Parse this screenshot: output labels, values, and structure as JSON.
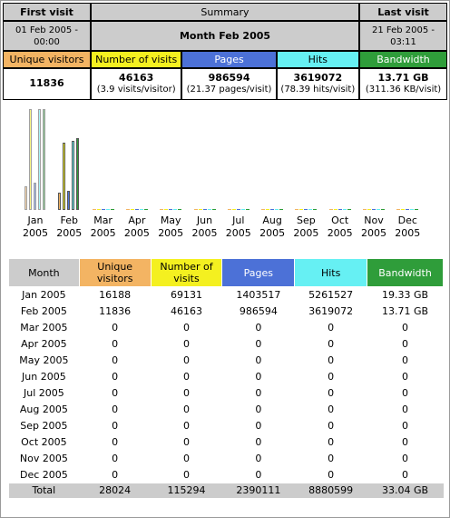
{
  "summary": {
    "first_visit_label": "First visit",
    "summary_label": "Summary",
    "last_visit_label": "Last visit",
    "first_visit_date": "01 Feb 2005 - 00:00",
    "period": "Month Feb 2005",
    "last_visit_date": "21 Feb 2005 - 03:11",
    "labels": {
      "visitors": "Unique visitors",
      "visits": "Number of visits",
      "pages": "Pages",
      "hits": "Hits",
      "bandwidth": "Bandwidth"
    },
    "values": {
      "visitors": "11836",
      "visits": "46163",
      "visits_sub": "(3.9 visits/visitor)",
      "pages": "986594",
      "pages_sub": "(21.37 pages/visit)",
      "hits": "3619072",
      "hits_sub": "(78.39 hits/visit)",
      "bandwidth": "13.71 GB",
      "bandwidth_sub": "(311.36 KB/visit)"
    }
  },
  "colors": {
    "visitors": "#f3b463",
    "visits": "#f4f020",
    "pages": "#4c71d7",
    "hits": "#66f0f3",
    "bandwidth": "#2f9d3a"
  },
  "chart_data": {
    "type": "bar",
    "categories": [
      "Jan 2005",
      "Feb 2005",
      "Mar 2005",
      "Apr 2005",
      "May 2005",
      "Jun 2005",
      "Jul 2005",
      "Aug 2005",
      "Sep 2005",
      "Oct 2005",
      "Nov 2005",
      "Dec 2005"
    ],
    "series": [
      {
        "name": "Unique visitors",
        "values": [
          16188,
          11836,
          0,
          0,
          0,
          0,
          0,
          0,
          0,
          0,
          0,
          0
        ]
      },
      {
        "name": "Number of visits",
        "values": [
          69131,
          46163,
          0,
          0,
          0,
          0,
          0,
          0,
          0,
          0,
          0,
          0
        ]
      },
      {
        "name": "Pages",
        "values": [
          1403517,
          986594,
          0,
          0,
          0,
          0,
          0,
          0,
          0,
          0,
          0,
          0
        ]
      },
      {
        "name": "Hits",
        "values": [
          5261527,
          3619072,
          0,
          0,
          0,
          0,
          0,
          0,
          0,
          0,
          0,
          0
        ]
      },
      {
        "name": "Bandwidth",
        "values": [
          19.33,
          13.71,
          0,
          0,
          0,
          0,
          0,
          0,
          0,
          0,
          0,
          0
        ]
      }
    ],
    "month_labels": [
      [
        "Jan",
        "2005"
      ],
      [
        "Feb",
        "2005"
      ],
      [
        "Mar",
        "2005"
      ],
      [
        "Apr",
        "2005"
      ],
      [
        "May",
        "2005"
      ],
      [
        "Jun",
        "2005"
      ],
      [
        "Jul",
        "2005"
      ],
      [
        "Aug",
        "2005"
      ],
      [
        "Sep",
        "2005"
      ],
      [
        "Oct",
        "2005"
      ],
      [
        "Nov",
        "2005"
      ],
      [
        "Dec",
        "2005"
      ]
    ]
  },
  "table": {
    "headers": {
      "month": "Month",
      "visitors": "Unique visitors",
      "visits": "Number of visits",
      "pages": "Pages",
      "hits": "Hits",
      "bandwidth": "Bandwidth"
    },
    "rows": [
      [
        "Jan 2005",
        "16188",
        "69131",
        "1403517",
        "5261527",
        "19.33 GB"
      ],
      [
        "Feb 2005",
        "11836",
        "46163",
        "986594",
        "3619072",
        "13.71 GB"
      ],
      [
        "Mar 2005",
        "0",
        "0",
        "0",
        "0",
        "0"
      ],
      [
        "Apr 2005",
        "0",
        "0",
        "0",
        "0",
        "0"
      ],
      [
        "May 2005",
        "0",
        "0",
        "0",
        "0",
        "0"
      ],
      [
        "Jun 2005",
        "0",
        "0",
        "0",
        "0",
        "0"
      ],
      [
        "Jul 2005",
        "0",
        "0",
        "0",
        "0",
        "0"
      ],
      [
        "Aug 2005",
        "0",
        "0",
        "0",
        "0",
        "0"
      ],
      [
        "Sep 2005",
        "0",
        "0",
        "0",
        "0",
        "0"
      ],
      [
        "Oct 2005",
        "0",
        "0",
        "0",
        "0",
        "0"
      ],
      [
        "Nov 2005",
        "0",
        "0",
        "0",
        "0",
        "0"
      ],
      [
        "Dec 2005",
        "0",
        "0",
        "0",
        "0",
        "0"
      ]
    ],
    "total": [
      "Total",
      "28024",
      "115294",
      "2390111",
      "8880599",
      "33.04 GB"
    ]
  }
}
